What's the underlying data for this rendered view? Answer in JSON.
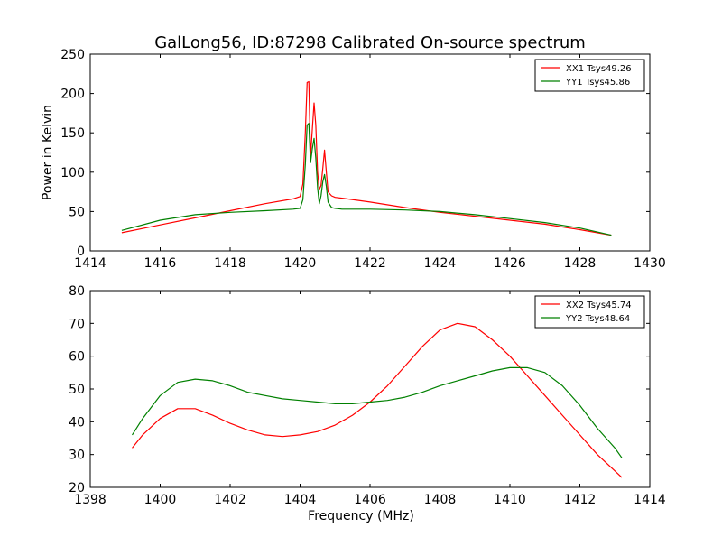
{
  "title": "GalLong56, ID:87298 Calibrated On-source spectrum",
  "colors": {
    "xx": "#ff0000",
    "yy": "#008000",
    "axis": "#000000",
    "background": "#ffffff"
  },
  "chart_data": [
    {
      "type": "line",
      "title": "GalLong56, ID:87298 Calibrated On-source spectrum",
      "xlabel": "",
      "ylabel": "Power in Kelvin",
      "xlim": [
        1414,
        1430
      ],
      "ylim": [
        0,
        250
      ],
      "xticks": [
        "1414",
        "1416",
        "1418",
        "1420",
        "1422",
        "1424",
        "1426",
        "1428",
        "1430"
      ],
      "yticks": [
        "0",
        "50",
        "100",
        "150",
        "200",
        "250"
      ],
      "grid": false,
      "legend": "top-right",
      "series": [
        {
          "name": "XX1 Tsys49.26",
          "color": "#ff0000",
          "x": [
            1414.9,
            1416,
            1417,
            1418,
            1419,
            1419.8,
            1420.0,
            1420.08,
            1420.15,
            1420.2,
            1420.25,
            1420.3,
            1420.35,
            1420.4,
            1420.45,
            1420.5,
            1420.55,
            1420.6,
            1420.65,
            1420.7,
            1420.75,
            1420.8,
            1420.9,
            1421.0,
            1421.2,
            1422,
            1423,
            1424,
            1425,
            1426,
            1427,
            1428,
            1428.9
          ],
          "y": [
            23,
            33,
            42,
            51,
            60,
            66,
            69,
            85,
            150,
            214,
            215,
            120,
            155,
            188,
            160,
            100,
            78,
            83,
            105,
            128,
            100,
            75,
            70,
            68,
            67,
            62,
            55,
            49,
            44,
            39,
            34,
            27,
            20
          ]
        },
        {
          "name": "YY1 Tsys45.86",
          "color": "#008000",
          "x": [
            1414.9,
            1416,
            1417,
            1418,
            1419,
            1419.8,
            1420.0,
            1420.08,
            1420.15,
            1420.2,
            1420.25,
            1420.3,
            1420.35,
            1420.4,
            1420.45,
            1420.5,
            1420.55,
            1420.6,
            1420.65,
            1420.7,
            1420.75,
            1420.8,
            1420.9,
            1421.0,
            1421.2,
            1422,
            1423,
            1424,
            1425,
            1426,
            1427,
            1428,
            1428.9
          ],
          "y": [
            26,
            39,
            46,
            49,
            51,
            53,
            54,
            65,
            110,
            160,
            162,
            112,
            130,
            143,
            118,
            80,
            60,
            70,
            88,
            97,
            82,
            62,
            55,
            54,
            53,
            53,
            52,
            50,
            46,
            41,
            36,
            29,
            20
          ]
        }
      ]
    },
    {
      "type": "line",
      "title": "",
      "xlabel": "Frequency (MHz)",
      "ylabel": "",
      "xlim": [
        1398,
        1414
      ],
      "ylim": [
        20,
        80
      ],
      "xticks": [
        "1398",
        "1400",
        "1402",
        "1404",
        "1406",
        "1408",
        "1410",
        "1412",
        "1414"
      ],
      "yticks": [
        "20",
        "30",
        "40",
        "50",
        "60",
        "70",
        "80"
      ],
      "grid": false,
      "legend": "top-right",
      "series": [
        {
          "name": "XX2 Tsys45.74",
          "color": "#ff0000",
          "x": [
            1399.2,
            1399.5,
            1400.0,
            1400.5,
            1401.0,
            1401.5,
            1402.0,
            1402.5,
            1403.0,
            1403.5,
            1404.0,
            1404.5,
            1405.0,
            1405.5,
            1406.0,
            1406.5,
            1407.0,
            1407.5,
            1408.0,
            1408.5,
            1409.0,
            1409.5,
            1410.0,
            1410.5,
            1411.0,
            1411.5,
            1412.0,
            1412.5,
            1413.0,
            1413.2
          ],
          "y": [
            32,
            36,
            41,
            44,
            44,
            42,
            39.5,
            37.5,
            36,
            35.5,
            36,
            37,
            39,
            42,
            46,
            51,
            57,
            63,
            68,
            70,
            69,
            65,
            60,
            54,
            48,
            42,
            36,
            30,
            25,
            23
          ]
        },
        {
          "name": "YY2 Tsys48.64",
          "color": "#008000",
          "x": [
            1399.2,
            1399.5,
            1400.0,
            1400.5,
            1401.0,
            1401.5,
            1402.0,
            1402.5,
            1403.0,
            1403.5,
            1404.0,
            1404.5,
            1405.0,
            1405.5,
            1406.0,
            1406.5,
            1407.0,
            1407.5,
            1408.0,
            1408.5,
            1409.0,
            1409.5,
            1410.0,
            1410.5,
            1411.0,
            1411.5,
            1412.0,
            1412.5,
            1413.0,
            1413.2
          ],
          "y": [
            36,
            41,
            48,
            52,
            53,
            52.5,
            51,
            49,
            48,
            47,
            46.5,
            46,
            45.5,
            45.5,
            46,
            46.5,
            47.5,
            49,
            51,
            52.5,
            54,
            55.5,
            56.5,
            56.5,
            55,
            51,
            45,
            38,
            32,
            29
          ]
        }
      ]
    }
  ]
}
